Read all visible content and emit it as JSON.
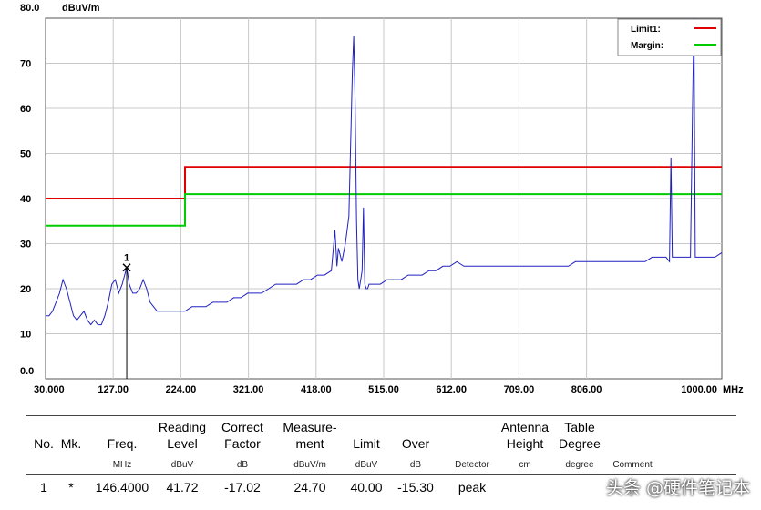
{
  "chart_data": {
    "type": "line",
    "ylabel_unit": "dBuV/m",
    "xlabel_unit": "MHz",
    "xlim": [
      30,
      1000
    ],
    "ylim": [
      0,
      80
    ],
    "x_tick_labels": [
      "30.000",
      "127.00",
      "224.00",
      "321.00",
      "418.00",
      "515.00",
      "612.00",
      "709.00",
      "806.00",
      "1000.00"
    ],
    "x_tick_values": [
      30,
      127,
      224,
      321,
      418,
      515,
      612,
      709,
      806,
      1000
    ],
    "y_tick_labels": [
      "80.0",
      "70",
      "60",
      "50",
      "40",
      "30",
      "20",
      "10",
      "0.0"
    ],
    "y_tick_values": [
      80,
      70,
      60,
      50,
      40,
      30,
      20,
      10,
      0
    ],
    "grid": true,
    "legend_position": "top-right",
    "legend": [
      {
        "name": "Limit1:",
        "color": "#e00000"
      },
      {
        "name": "Margin:",
        "color": "#00cc00"
      }
    ],
    "limit_line": {
      "color": "#e00000",
      "x": [
        30,
        230,
        230,
        1000
      ],
      "y": [
        40,
        40,
        47,
        47
      ]
    },
    "margin_line": {
      "color": "#00cc00",
      "x": [
        30,
        230,
        230,
        1000
      ],
      "y": [
        34,
        34,
        41,
        41
      ]
    },
    "trace": {
      "color": "#2020c0",
      "x": [
        30,
        35,
        40,
        45,
        50,
        55,
        60,
        65,
        70,
        75,
        80,
        85,
        90,
        95,
        100,
        105,
        110,
        115,
        120,
        125,
        130,
        135,
        140,
        146.4,
        150,
        155,
        160,
        165,
        170,
        175,
        180,
        185,
        190,
        195,
        200,
        210,
        220,
        230,
        240,
        250,
        260,
        270,
        280,
        290,
        300,
        310,
        320,
        330,
        340,
        350,
        360,
        370,
        380,
        390,
        400,
        410,
        420,
        430,
        440,
        445,
        448,
        450,
        455,
        460,
        465,
        470,
        472,
        474,
        476,
        478,
        480,
        482,
        484,
        486,
        488,
        490,
        492,
        494,
        496,
        500,
        510,
        520,
        530,
        540,
        550,
        560,
        570,
        580,
        590,
        600,
        610,
        620,
        630,
        640,
        650,
        660,
        670,
        680,
        690,
        700,
        710,
        720,
        730,
        740,
        750,
        760,
        770,
        780,
        790,
        800,
        810,
        820,
        830,
        840,
        850,
        860,
        870,
        880,
        890,
        900,
        910,
        920,
        925,
        927,
        929,
        931,
        935,
        940,
        950,
        955,
        958,
        960,
        962,
        965,
        970,
        980,
        990,
        1000
      ],
      "y": [
        14,
        14,
        15,
        17,
        19,
        22,
        20,
        17,
        14,
        13,
        14,
        15,
        13,
        12,
        13,
        12,
        12,
        14,
        17,
        21,
        22,
        19,
        21,
        24.7,
        21,
        19,
        19,
        20,
        22,
        20,
        17,
        16,
        15,
        15,
        15,
        15,
        15,
        15,
        16,
        16,
        16,
        17,
        17,
        17,
        18,
        18,
        19,
        19,
        19,
        20,
        21,
        21,
        21,
        21,
        22,
        22,
        23,
        23,
        24,
        33,
        25,
        29,
        26,
        30,
        36,
        68,
        76,
        62,
        35,
        22,
        20,
        22,
        24,
        38,
        21,
        20,
        20,
        21,
        21,
        21,
        21,
        22,
        22,
        22,
        23,
        23,
        23,
        24,
        24,
        25,
        25,
        26,
        25,
        25,
        25,
        25,
        25,
        25,
        25,
        25,
        25,
        25,
        25,
        25,
        25,
        25,
        25,
        25,
        26,
        26,
        26,
        26,
        26,
        26,
        26,
        26,
        26,
        26,
        26,
        27,
        27,
        27,
        26,
        49,
        27,
        27,
        27,
        27,
        27,
        27,
        60,
        80,
        27,
        27,
        27,
        27,
        27,
        28
      ]
    },
    "marker": {
      "label": "1",
      "x": 146.4,
      "y": 24.7
    }
  },
  "table": {
    "headers": [
      {
        "key": "no",
        "label": "No."
      },
      {
        "key": "mk",
        "label": "Mk."
      },
      {
        "key": "freq",
        "label": "Freq."
      },
      {
        "key": "reading",
        "label": "Reading Level"
      },
      {
        "key": "correct",
        "label": "Correct Factor"
      },
      {
        "key": "measure",
        "label": "Measure-ment"
      },
      {
        "key": "limit",
        "label": "Limit"
      },
      {
        "key": "over",
        "label": "Over"
      },
      {
        "key": "detector",
        "label": ""
      },
      {
        "key": "antenna",
        "label": "Antenna Height"
      },
      {
        "key": "tbl",
        "label": "Table Degree"
      },
      {
        "key": "comment",
        "label": ""
      }
    ],
    "header_lines": {
      "reading": [
        "Reading",
        "Level"
      ],
      "correct": [
        "Correct",
        "Factor"
      ],
      "measure": [
        "Measure-",
        "ment"
      ],
      "antenna": [
        "Antenna",
        "Height"
      ],
      "tbl": [
        "Table",
        "Degree"
      ]
    },
    "units": {
      "freq": "MHz",
      "reading": "dBuV",
      "correct": "dB",
      "measure": "dBuV/m",
      "limit": "dBuV",
      "over": "dB",
      "detector": "Detector",
      "antenna": "cm",
      "tbl": "degree",
      "comment": "Comment"
    },
    "row": {
      "no": "1",
      "mk": "*",
      "freq": "146.4000",
      "reading": "41.72",
      "correct": "-17.02",
      "measure": "24.70",
      "limit": "40.00",
      "over": "-15.30",
      "detector": "peak"
    }
  },
  "watermark": "头条 @硬件笔记本"
}
